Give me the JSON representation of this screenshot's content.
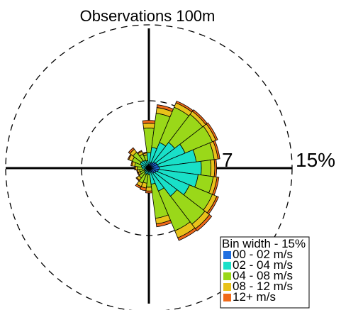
{
  "chart_data": {
    "type": "windrose",
    "title": "Observations 100m",
    "direction_unit": "degrees",
    "direction_bin_width_deg": 15,
    "ring_values": [
      7,
      15
    ],
    "ring_labels": [
      "7",
      "15%"
    ],
    "rmax": 15,
    "legend": {
      "placement": "bottom-right",
      "title": "Bin width - 15%",
      "entries": [
        "00 - 02 m/s",
        "02 - 04 m/s",
        "04 - 08 m/s",
        "08 - 12 m/s",
        "12+ m/s"
      ]
    },
    "colors": [
      "#1f6fe0",
      "#19e0c8",
      "#9ad819",
      "#e8c21a",
      "#f06a19"
    ],
    "series_names": [
      "00 - 02 m/s",
      "02 - 04 m/s",
      "04 - 08 m/s",
      "08 - 12 m/s",
      "12+ m/s"
    ],
    "directions": [
      0,
      15,
      30,
      45,
      60,
      75,
      90,
      105,
      120,
      135,
      150,
      165,
      180,
      195,
      210,
      225,
      240,
      255,
      270,
      285,
      300,
      315,
      330,
      345
    ],
    "frequencies": [
      [
        0.4,
        1.2,
        2.6,
        0.5,
        0.3
      ],
      [
        0.6,
        1.6,
        3.6,
        0.6,
        0.3
      ],
      [
        0.6,
        2.3,
        4.0,
        0.5,
        0.2
      ],
      [
        0.8,
        2.6,
        3.7,
        0.4,
        0.2
      ],
      [
        0.9,
        3.2,
        3.1,
        0.4,
        0.2
      ],
      [
        1.0,
        4.0,
        1.9,
        0.4,
        0.2
      ],
      [
        1.1,
        4.4,
        1.0,
        0.4,
        0.2
      ],
      [
        1.0,
        4.2,
        1.6,
        0.4,
        0.2
      ],
      [
        0.8,
        3.8,
        2.6,
        0.5,
        0.2
      ],
      [
        0.7,
        3.0,
        3.7,
        0.6,
        0.3
      ],
      [
        0.5,
        2.1,
        4.5,
        0.8,
        0.3
      ],
      [
        0.4,
        1.3,
        3.6,
        0.6,
        0.3
      ],
      [
        0.2,
        0.5,
        1.3,
        0.4,
        0.2
      ],
      [
        0.2,
        0.4,
        1.0,
        0.5,
        0.3
      ],
      [
        0.2,
        0.5,
        1.0,
        0.4,
        0.2
      ],
      [
        0.2,
        0.4,
        0.7,
        0.3,
        0.1
      ],
      [
        0.2,
        0.3,
        0.5,
        0.2,
        0.1
      ],
      [
        0.2,
        0.3,
        0.5,
        0.2,
        0.1
      ],
      [
        0.3,
        0.4,
        0.5,
        0.2,
        0.1
      ],
      [
        0.3,
        0.5,
        0.7,
        0.3,
        0.1
      ],
      [
        0.3,
        0.7,
        0.9,
        0.4,
        0.1
      ],
      [
        0.3,
        0.7,
        1.1,
        0.4,
        0.2
      ],
      [
        0.3,
        0.6,
        0.7,
        0.3,
        0.1
      ],
      [
        0.3,
        0.5,
        0.6,
        0.2,
        0.1
      ]
    ]
  }
}
